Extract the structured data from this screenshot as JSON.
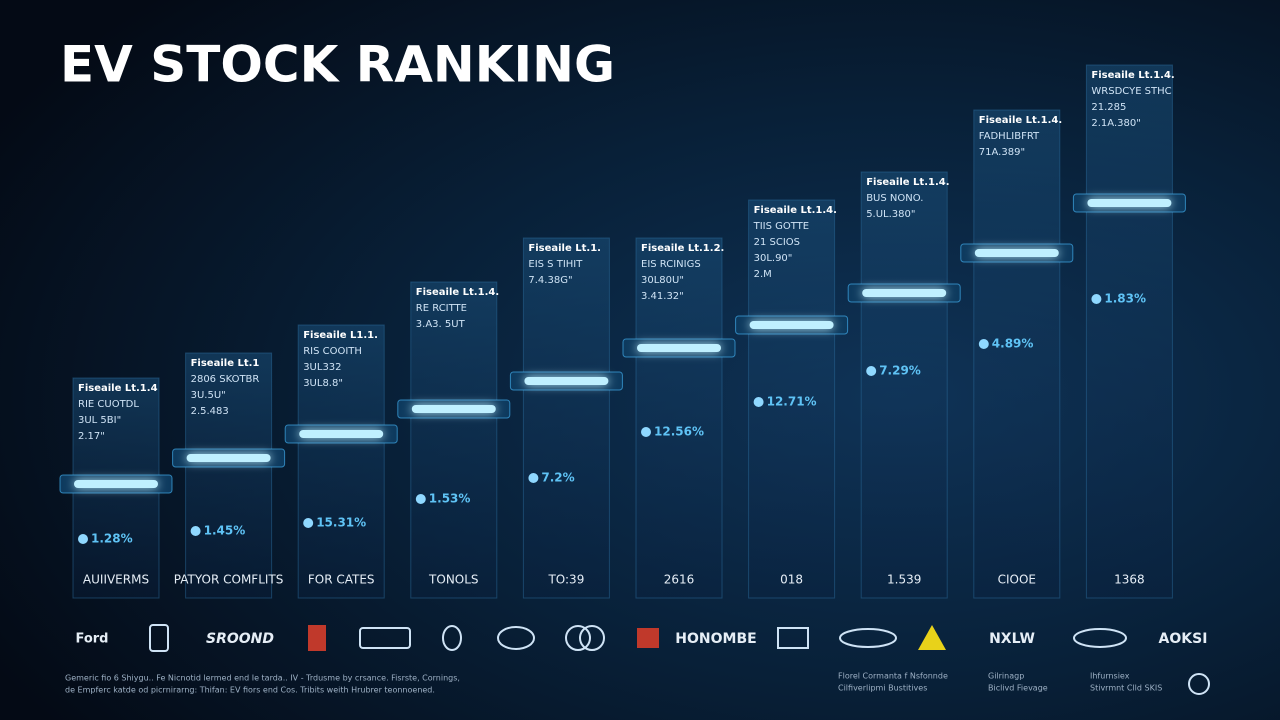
{
  "header": {
    "title": "EV STOCK RANKING"
  },
  "columns": [
    {
      "card_lines": [
        "Fiseaile Lt.1.4",
        "RIE CUOTDL",
        "3UL 5BI\"",
        "2.17\""
      ],
      "percent": "1.28%",
      "label": "AUIIVERMS"
    },
    {
      "card_lines": [
        "Fiseaile Lt.1",
        "2806 SKOTBR",
        "3U.5U\"",
        "2.5.483"
      ],
      "percent": "1.45%",
      "label": "PATYOR COMFLITS"
    },
    {
      "card_lines": [
        "Fiseaile L1.1.",
        "RIS COOITH",
        "3UL332",
        "3UL8.8\""
      ],
      "percent": "15.31%",
      "label": "FOR CATES"
    },
    {
      "card_lines": [
        "Fiseaile Lt.1.4.",
        "RE RCITTE",
        "3.A3. 5UT"
      ],
      "percent": "1.53%",
      "label": "TONOLS"
    },
    {
      "card_lines": [
        "Fiseaile Lt.1.",
        "EIS S TIHIT",
        "7.4.38G\""
      ],
      "percent": "7.2%",
      "label": "TO:39"
    },
    {
      "card_lines": [
        "Fiseaile Lt.1.2.",
        "EIS RCINIGS",
        "30L80U\"",
        "3.41.32\""
      ],
      "percent": "12.56%",
      "label": "2616"
    },
    {
      "card_lines": [
        "Fiseaile Lt.1.4.",
        "TIIS GOTTE",
        "21 SCIOS",
        "30L.90\"",
        "2.M"
      ],
      "percent": "12.71%",
      "label": "018"
    },
    {
      "card_lines": [
        "Fiseaile Lt.1.4.",
        "BUS NONO.",
        "5.UL.380\""
      ],
      "percent": "7.29%",
      "label": "1.539"
    },
    {
      "card_lines": [
        "Fiseaile Lt.1.4.",
        "FADHLIBFRT",
        "71A.389\""
      ],
      "percent": "4.89%",
      "label": "CIOOE"
    },
    {
      "card_lines": [
        "Fiseaile Lt.1.4.",
        "WRSDCYE STHC",
        "21.285",
        "2.1A.380\""
      ],
      "percent": "1.83%",
      "label": "1368"
    }
  ],
  "logos": [
    "Ford",
    "SROOND",
    "HONOMBE",
    "NXLW",
    "AOKSI"
  ],
  "footer": {
    "note": [
      "Gemeric fio 6 Shiygu.. Fe Nicnotid lermed end Ie tarda.. IV - Trdusme by crsance. Fisrste, Cornings,",
      "de Empferc katde od picrnirarng: Thifan: EV fiors end Cos. Tribits weith Hrubrer teonnoened."
    ],
    "groups": [
      [
        "Florel Cormanta f Nsfonnde",
        "Cilfiverlipmi Bustitives"
      ],
      [
        "Gilrinagp",
        "Biclivd Fievage"
      ],
      [
        "Ihfurnsiex",
        "Stivrmnt Clld SKIS"
      ]
    ]
  }
}
